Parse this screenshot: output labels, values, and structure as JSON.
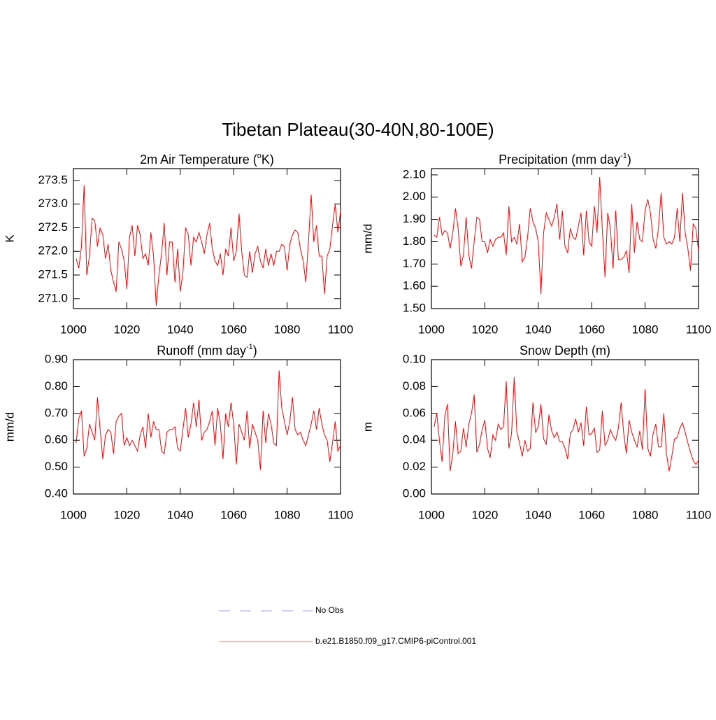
{
  "title": "Tibetan Plateau(30-40N,80-100E)",
  "legend": [
    {
      "name": "No Obs",
      "color": "#a0a0ff",
      "dash": true
    },
    {
      "name": "b.e21.B1850.f09_g17.CMIP6-piControl.001",
      "color": "#ff8080",
      "dash": false
    }
  ],
  "chart_data": [
    {
      "type": "line",
      "title": [
        "2m Air Temperature (",
        "o",
        "K)"
      ],
      "y_label": "K",
      "xlim": [
        1000,
        1100
      ],
      "xticks": [
        1000,
        1020,
        1040,
        1060,
        1080,
        1100
      ],
      "ylim": [
        270.79,
        273.75
      ],
      "yticks": [
        {
          "value": 271,
          "label": "271.0"
        },
        271.5,
        {
          "value": 272,
          "label": "272.0"
        },
        272.5,
        {
          "value": 273,
          "label": "273.0"
        },
        273.5
      ],
      "x": [
        1001,
        1002,
        1003,
        1004,
        1005,
        1006,
        1007,
        1008,
        1009,
        1010,
        1011,
        1012,
        1013,
        1014,
        1015,
        1016,
        1017,
        1018,
        1019,
        1020,
        1021,
        1022,
        1023,
        1024,
        1025,
        1026,
        1027,
        1028,
        1029,
        1030,
        1031,
        1032,
        1033,
        1034,
        1035,
        1036,
        1037,
        1038,
        1039,
        1040,
        1041,
        1042,
        1043,
        1044,
        1045,
        1046,
        1047,
        1048,
        1049,
        1050,
        1051,
        1052,
        1053,
        1054,
        1055,
        1056,
        1057,
        1058,
        1059,
        1060,
        1061,
        1062,
        1063,
        1064,
        1065,
        1066,
        1067,
        1068,
        1069,
        1070,
        1071,
        1072,
        1073,
        1074,
        1075,
        1076,
        1077,
        1078,
        1079,
        1080,
        1081,
        1082,
        1083,
        1084,
        1085,
        1086,
        1087,
        1088,
        1089,
        1090,
        1091,
        1092,
        1093,
        1094,
        1095,
        1096,
        1097,
        1098,
        1099,
        1100
      ],
      "series": [
        {
          "color": "#ff0000",
          "values": [
            271.85,
            271.65,
            272.1,
            273.4,
            271.5,
            271.9,
            272.7,
            272.65,
            272.1,
            272.5,
            272.35,
            271.85,
            272.15,
            271.6,
            271.35,
            271.15,
            272.2,
            272.05,
            271.8,
            271.2,
            272.3,
            272.55,
            271.9,
            272.55,
            272.35,
            271.85,
            271.95,
            271.7,
            272.4,
            271.9,
            270.85,
            271.5,
            271.95,
            272.6,
            271.5,
            272.2,
            272.2,
            271.35,
            272.05,
            271.15,
            271.55,
            272.5,
            272.35,
            271.7,
            272.3,
            272.2,
            272.4,
            272.2,
            271.95,
            272.35,
            272.6,
            272.05,
            271.8,
            271.7,
            271.95,
            271.5,
            272.05,
            271.9,
            272.5,
            271.8,
            272.0,
            272.8,
            272.0,
            271.5,
            271.45,
            272.0,
            271.55,
            271.95,
            272.1,
            271.8,
            271.65,
            272.05,
            271.7,
            271.95,
            271.7,
            272.0,
            272.0,
            272.15,
            272.1,
            271.6,
            272.15,
            272.35,
            272.45,
            272.4,
            272.05,
            271.8,
            271.35,
            272.2,
            273.2,
            272.2,
            272.55,
            271.9,
            271.9,
            271.1,
            271.9,
            272.05,
            272.55,
            273.0,
            272.4,
            272.85
          ]
        }
      ]
    },
    {
      "type": "line",
      "title": [
        "Precipitation (mm day",
        "-1",
        ")"
      ],
      "y_label": "mm/d",
      "xlim": [
        1000,
        1100
      ],
      "xticks": [
        1000,
        1020,
        1040,
        1060,
        1080,
        1100
      ],
      "ylim": [
        1.5,
        2.128
      ],
      "yticks": [
        {
          "value": 1.5,
          "label": "1.50"
        },
        {
          "value": 1.6,
          "label": "1.60"
        },
        {
          "value": 1.7,
          "label": "1.70"
        },
        {
          "value": 1.8,
          "label": "1.80"
        },
        {
          "value": 1.9,
          "label": "1.90"
        },
        {
          "value": 2.0,
          "label": "2.00"
        },
        {
          "value": 2.1,
          "label": "2.10"
        }
      ],
      "x": [
        1001,
        1002,
        1003,
        1004,
        1005,
        1006,
        1007,
        1008,
        1009,
        1010,
        1011,
        1012,
        1013,
        1014,
        1015,
        1016,
        1017,
        1018,
        1019,
        1020,
        1021,
        1022,
        1023,
        1024,
        1025,
        1026,
        1027,
        1028,
        1029,
        1030,
        1031,
        1032,
        1033,
        1034,
        1035,
        1036,
        1037,
        1038,
        1039,
        1040,
        1041,
        1042,
        1043,
        1044,
        1045,
        1046,
        1047,
        1048,
        1049,
        1050,
        1051,
        1052,
        1053,
        1054,
        1055,
        1056,
        1057,
        1058,
        1059,
        1060,
        1061,
        1062,
        1063,
        1064,
        1065,
        1066,
        1067,
        1068,
        1069,
        1070,
        1071,
        1072,
        1073,
        1074,
        1075,
        1076,
        1077,
        1078,
        1079,
        1080,
        1081,
        1082,
        1083,
        1084,
        1085,
        1086,
        1087,
        1088,
        1089,
        1090,
        1091,
        1092,
        1093,
        1094,
        1095,
        1096,
        1097,
        1098,
        1099,
        1100
      ],
      "series": [
        {
          "color": "#ff0000",
          "values": [
            1.83,
            1.82,
            1.91,
            1.83,
            1.85,
            1.84,
            1.77,
            1.84,
            1.95,
            1.86,
            1.69,
            1.74,
            1.91,
            1.74,
            1.68,
            1.8,
            1.91,
            1.9,
            1.8,
            1.8,
            1.75,
            1.81,
            1.78,
            1.81,
            1.82,
            1.82,
            1.84,
            1.74,
            1.96,
            1.8,
            1.82,
            1.79,
            1.88,
            1.71,
            1.73,
            1.82,
            1.95,
            1.89,
            1.86,
            1.8,
            1.565,
            1.84,
            1.93,
            1.9,
            1.87,
            1.91,
            1.97,
            1.81,
            1.94,
            1.78,
            1.75,
            1.86,
            1.82,
            1.81,
            1.87,
            1.93,
            1.74,
            1.94,
            1.8,
            1.78,
            1.96,
            1.84,
            2.09,
            1.85,
            1.64,
            1.93,
            1.86,
            1.68,
            1.94,
            1.72,
            1.72,
            1.73,
            1.76,
            1.66,
            1.97,
            1.75,
            1.89,
            1.81,
            1.8,
            1.94,
            1.99,
            1.93,
            1.81,
            1.77,
            1.86,
            2.02,
            1.82,
            1.79,
            1.8,
            1.79,
            1.82,
            1.95,
            1.8,
            2.02,
            1.84,
            1.77,
            1.67,
            1.88,
            1.86,
            1.76
          ]
        }
      ]
    },
    {
      "type": "line",
      "title": [
        "Runoff (mm day",
        "-1",
        ")"
      ],
      "y_label": "mm/d",
      "xlim": [
        1000,
        1100
      ],
      "xticks": [
        1000,
        1020,
        1040,
        1060,
        1080,
        1100
      ],
      "ylim": [
        0.4,
        0.9
      ],
      "yticks": [
        {
          "value": 0.4,
          "label": "0.40"
        },
        {
          "value": 0.5,
          "label": "0.50"
        },
        {
          "value": 0.6,
          "label": "0.60"
        },
        {
          "value": 0.7,
          "label": "0.70"
        },
        {
          "value": 0.8,
          "label": "0.80"
        },
        {
          "value": 0.9,
          "label": "0.90"
        }
      ],
      "x": [
        1001,
        1002,
        1003,
        1004,
        1005,
        1006,
        1007,
        1008,
        1009,
        1010,
        1011,
        1012,
        1013,
        1014,
        1015,
        1016,
        1017,
        1018,
        1019,
        1020,
        1021,
        1022,
        1023,
        1024,
        1025,
        1026,
        1027,
        1028,
        1029,
        1030,
        1031,
        1032,
        1033,
        1034,
        1035,
        1036,
        1037,
        1038,
        1039,
        1040,
        1041,
        1042,
        1043,
        1044,
        1045,
        1046,
        1047,
        1048,
        1049,
        1050,
        1051,
        1052,
        1053,
        1054,
        1055,
        1056,
        1057,
        1058,
        1059,
        1060,
        1061,
        1062,
        1063,
        1064,
        1065,
        1066,
        1067,
        1068,
        1069,
        1070,
        1071,
        1072,
        1073,
        1074,
        1075,
        1076,
        1077,
        1078,
        1079,
        1080,
        1081,
        1082,
        1083,
        1084,
        1085,
        1086,
        1087,
        1088,
        1089,
        1090,
        1091,
        1092,
        1093,
        1094,
        1095,
        1096,
        1097,
        1098,
        1099,
        1100
      ],
      "series": [
        {
          "color": "#ff0000",
          "values": [
            0.59,
            0.68,
            0.71,
            0.54,
            0.57,
            0.66,
            0.63,
            0.6,
            0.76,
            0.64,
            0.53,
            0.62,
            0.64,
            0.63,
            0.55,
            0.67,
            0.69,
            0.7,
            0.58,
            0.61,
            0.58,
            0.6,
            0.58,
            0.56,
            0.62,
            0.65,
            0.57,
            0.7,
            0.61,
            0.67,
            0.64,
            0.64,
            0.56,
            0.55,
            0.63,
            0.64,
            0.64,
            0.65,
            0.57,
            0.56,
            0.64,
            0.72,
            0.61,
            0.66,
            0.74,
            0.65,
            0.75,
            0.6,
            0.63,
            0.64,
            0.67,
            0.71,
            0.58,
            0.72,
            0.66,
            0.53,
            0.7,
            0.65,
            0.74,
            0.66,
            0.51,
            0.66,
            0.63,
            0.6,
            0.71,
            0.57,
            0.66,
            0.63,
            0.6,
            0.49,
            0.71,
            0.59,
            0.7,
            0.66,
            0.59,
            0.58,
            0.86,
            0.72,
            0.67,
            0.62,
            0.67,
            0.76,
            0.64,
            0.62,
            0.63,
            0.6,
            0.58,
            0.62,
            0.66,
            0.71,
            0.64,
            0.72,
            0.66,
            0.62,
            0.6,
            0.52,
            0.59,
            0.67,
            0.56,
            0.58
          ]
        }
      ]
    },
    {
      "type": "line",
      "title": [
        "Snow Depth (m)"
      ],
      "y_label": "m",
      "xlim": [
        1000,
        1100
      ],
      "xticks": [
        1000,
        1020,
        1040,
        1060,
        1080,
        1100
      ],
      "ylim": [
        0,
        0.1
      ],
      "yticks": [
        {
          "value": 0,
          "label": "0.00"
        },
        {
          "value": 0.02,
          "label": "0.02"
        },
        {
          "value": 0.04,
          "label": "0.04"
        },
        {
          "value": 0.06,
          "label": "0.06"
        },
        {
          "value": 0.08,
          "label": "0.08"
        },
        {
          "value": 0.1,
          "label": "0.10"
        }
      ],
      "x": [
        1001,
        1002,
        1003,
        1004,
        1005,
        1006,
        1007,
        1008,
        1009,
        1010,
        1011,
        1012,
        1013,
        1014,
        1015,
        1016,
        1017,
        1018,
        1019,
        1020,
        1021,
        1022,
        1023,
        1024,
        1025,
        1026,
        1027,
        1028,
        1029,
        1030,
        1031,
        1032,
        1033,
        1034,
        1035,
        1036,
        1037,
        1038,
        1039,
        1040,
        1041,
        1042,
        1043,
        1044,
        1045,
        1046,
        1047,
        1048,
        1049,
        1050,
        1051,
        1052,
        1053,
        1054,
        1055,
        1056,
        1057,
        1058,
        1059,
        1060,
        1061,
        1062,
        1063,
        1064,
        1065,
        1066,
        1067,
        1068,
        1069,
        1070,
        1071,
        1072,
        1073,
        1074,
        1075,
        1076,
        1077,
        1078,
        1079,
        1080,
        1081,
        1082,
        1083,
        1084,
        1085,
        1086,
        1087,
        1088,
        1089,
        1090,
        1091,
        1092,
        1093,
        1094,
        1095,
        1096,
        1097,
        1098,
        1099,
        1100
      ],
      "series": [
        {
          "color": "#ff0000",
          "values": [
            0.05,
            0.06,
            0.04,
            0.024,
            0.058,
            0.067,
            0.017,
            0.03,
            0.054,
            0.03,
            0.032,
            0.049,
            0.035,
            0.052,
            0.06,
            0.074,
            0.031,
            0.037,
            0.048,
            0.055,
            0.034,
            0.027,
            0.044,
            0.04,
            0.052,
            0.048,
            0.05,
            0.084,
            0.034,
            0.045,
            0.087,
            0.046,
            0.038,
            0.028,
            0.04,
            0.032,
            0.034,
            0.068,
            0.046,
            0.05,
            0.067,
            0.041,
            0.037,
            0.059,
            0.047,
            0.042,
            0.046,
            0.039,
            0.039,
            0.034,
            0.026,
            0.045,
            0.048,
            0.056,
            0.046,
            0.053,
            0.036,
            0.065,
            0.044,
            0.045,
            0.049,
            0.031,
            0.033,
            0.062,
            0.036,
            0.04,
            0.048,
            0.043,
            0.04,
            0.049,
            0.068,
            0.045,
            0.03,
            0.055,
            0.046,
            0.04,
            0.035,
            0.047,
            0.033,
            0.078,
            0.034,
            0.028,
            0.045,
            0.052,
            0.035,
            0.035,
            0.06,
            0.03,
            0.017,
            0.028,
            0.041,
            0.042,
            0.049,
            0.053,
            0.046,
            0.038,
            0.031,
            0.025,
            0.022,
            0.025
          ]
        }
      ]
    }
  ]
}
